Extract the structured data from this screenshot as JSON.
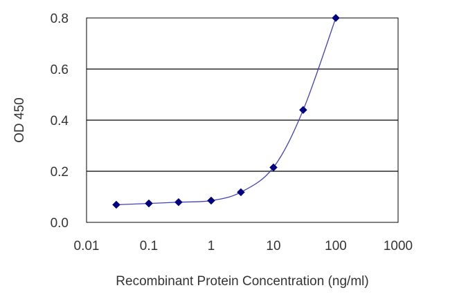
{
  "chart_data": {
    "type": "line",
    "xscale": "log",
    "xlim": [
      0.01,
      1000
    ],
    "ylim": [
      0.0,
      0.8
    ],
    "x_ticks": [
      "0.01",
      "0.1",
      "1",
      "10",
      "100",
      "1000"
    ],
    "y_ticks": [
      "0.0",
      "0.2",
      "0.4",
      "0.6",
      "0.8"
    ],
    "xlabel": "Recombinant Protein Concentration (ng/ml)",
    "ylabel": "OD 450",
    "horizontal_gridlines": [
      0.2,
      0.4,
      0.6
    ],
    "series": [
      {
        "x": [
          0.03,
          0.1,
          0.3,
          1,
          3,
          10,
          30,
          100
        ],
        "y": [
          0.069,
          0.074,
          0.079,
          0.085,
          0.118,
          0.215,
          0.44,
          0.8
        ]
      }
    ],
    "colors": {
      "series": "#000080",
      "gridline": "#000000",
      "frame": "#000000"
    }
  }
}
